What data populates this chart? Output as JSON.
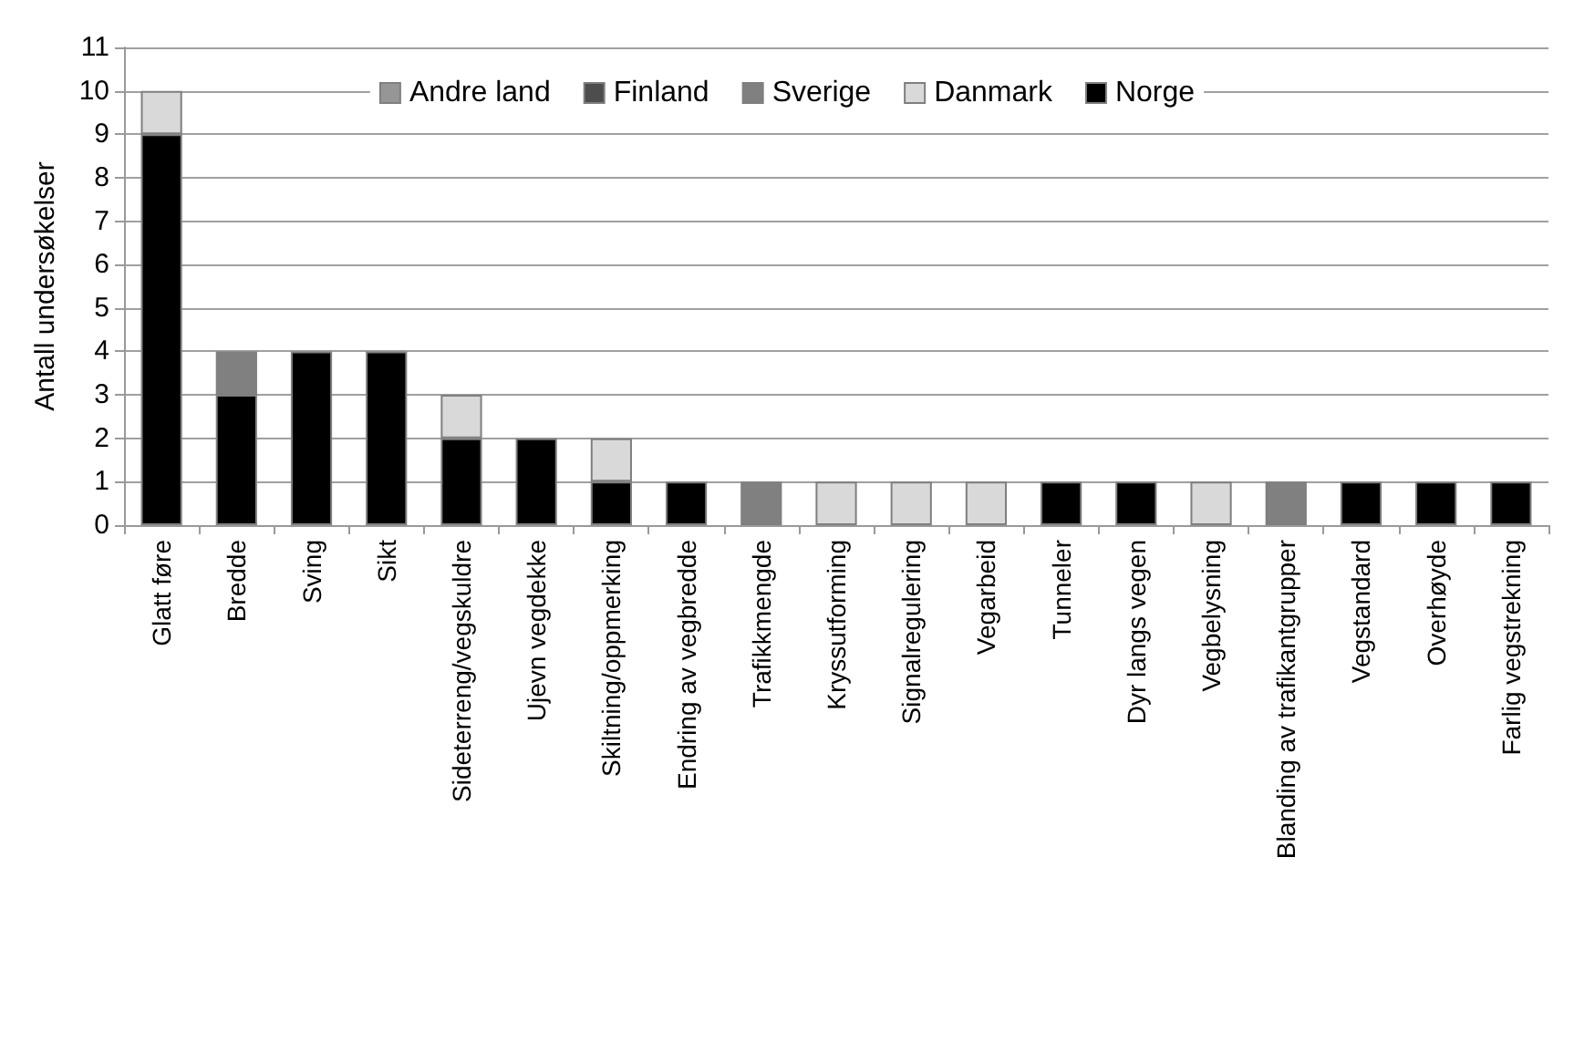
{
  "chart_data": {
    "type": "bar",
    "stacked": true,
    "ylabel": "Antall undersøkelser",
    "categories": [
      "Glatt føre",
      "Bredde",
      "Sving",
      "Sikt",
      "Sideterreng/vegskuldre",
      "Ujevn vegdekke",
      "Skiltning/oppmerking",
      "Endring av vegbredde",
      "Trafikkmengde",
      "Kryssutforming",
      "Signalregulering",
      "Vegarbeid",
      "Tunneler",
      "Dyr langs vegen",
      "Vegbelysning",
      "Blanding av trafikantgrupper",
      "Vegstandard",
      "Overhøyde",
      "Farlig vegstrekning"
    ],
    "series": [
      {
        "name": "Norge",
        "color": "#000000",
        "values": [
          9,
          3,
          4,
          4,
          2,
          2,
          1,
          1,
          0,
          0,
          0,
          0,
          1,
          1,
          0,
          0,
          1,
          1,
          1
        ]
      },
      {
        "name": "Danmark",
        "color": "#d9d9d9",
        "values": [
          1,
          0,
          0,
          0,
          1,
          0,
          1,
          0,
          0,
          1,
          1,
          1,
          0,
          0,
          1,
          0,
          0,
          0,
          0
        ]
      },
      {
        "name": "Sverige",
        "color": "#808080",
        "values": [
          0,
          1,
          0,
          0,
          0,
          0,
          0,
          0,
          1,
          0,
          0,
          0,
          0,
          0,
          0,
          1,
          0,
          0,
          0
        ]
      },
      {
        "name": "Finland",
        "color": "#4d4d4d",
        "values": [
          0,
          0,
          0,
          0,
          0,
          0,
          0,
          0,
          0,
          0,
          0,
          0,
          0,
          0,
          0,
          0,
          0,
          0,
          0
        ]
      },
      {
        "name": "Andre land",
        "color": "#969696",
        "values": [
          0,
          0,
          0,
          0,
          0,
          0,
          0,
          0,
          0,
          0,
          0,
          0,
          0,
          0,
          0,
          0,
          0,
          0,
          0
        ]
      }
    ],
    "ylim": [
      0,
      11
    ],
    "yticks": [
      0,
      1,
      2,
      3,
      4,
      5,
      6,
      7,
      8,
      9,
      10,
      11
    ],
    "grid": "y",
    "legend": "top"
  }
}
